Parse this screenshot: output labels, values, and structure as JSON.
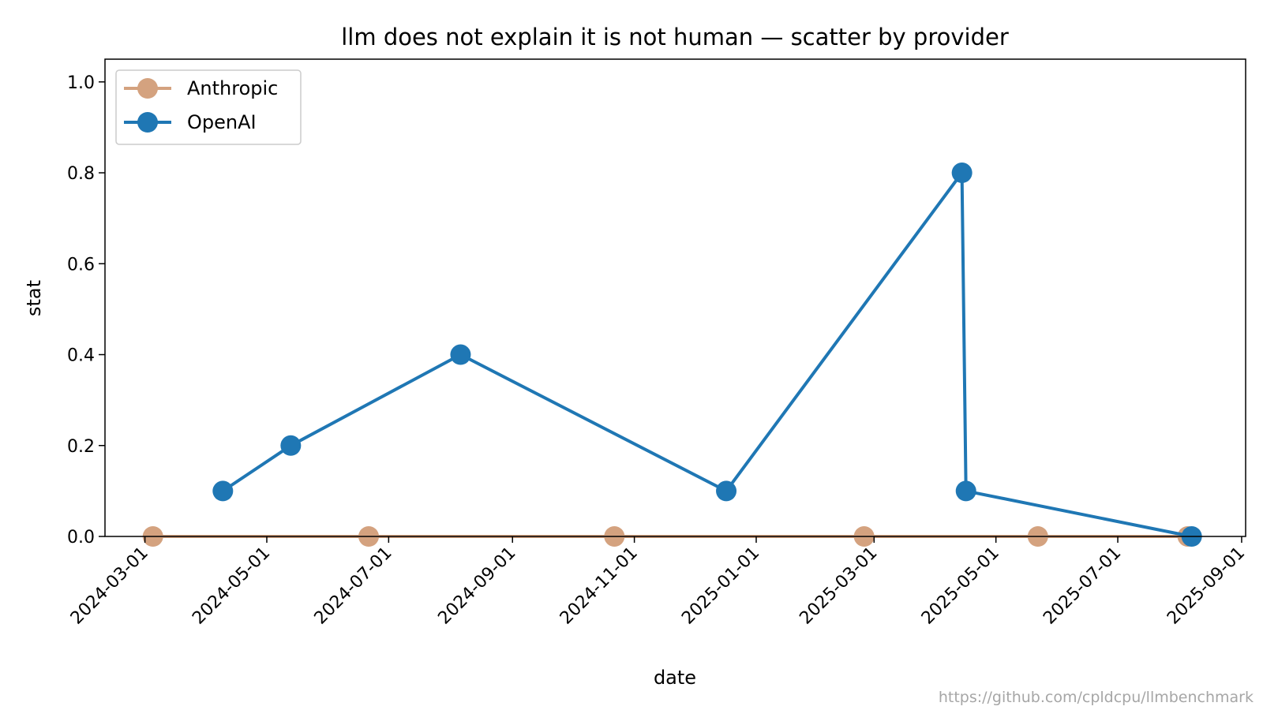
{
  "chart_data": {
    "type": "line",
    "title": "llm does not explain it is not human — scatter by provider",
    "xlabel": "date",
    "ylabel": "stat",
    "xlim": [
      "2024-02-10",
      "2025-09-03"
    ],
    "ylim": [
      0,
      1.05
    ],
    "x_ticks": [
      "2024-03-01",
      "2024-05-01",
      "2024-07-01",
      "2024-09-01",
      "2024-11-01",
      "2025-01-01",
      "2025-03-01",
      "2025-05-01",
      "2025-07-01",
      "2025-09-01"
    ],
    "y_ticks": [
      "0.0",
      "0.2",
      "0.4",
      "0.6",
      "0.8",
      "1.0"
    ],
    "grid": false,
    "legend_position": "top-left",
    "series": [
      {
        "name": "Anthropic",
        "color": "#d4a27f",
        "points": [
          {
            "x": "2024-03-05",
            "y": 0.0
          },
          {
            "x": "2024-06-21",
            "y": 0.0
          },
          {
            "x": "2024-10-22",
            "y": 0.0
          },
          {
            "x": "2025-02-24",
            "y": 0.0
          },
          {
            "x": "2025-05-22",
            "y": 0.0
          },
          {
            "x": "2025-08-05",
            "y": 0.0
          }
        ]
      },
      {
        "name": "OpenAI",
        "color": "#1f77b4",
        "points": [
          {
            "x": "2024-04-09",
            "y": 0.1
          },
          {
            "x": "2024-05-13",
            "y": 0.2
          },
          {
            "x": "2024-08-06",
            "y": 0.4
          },
          {
            "x": "2024-12-17",
            "y": 0.1
          },
          {
            "x": "2025-04-14",
            "y": 0.8
          },
          {
            "x": "2025-04-16",
            "y": 0.1
          },
          {
            "x": "2025-08-07",
            "y": 0.0
          }
        ]
      }
    ]
  },
  "watermark": "https://github.com/cpldcpu/llmbenchmark"
}
